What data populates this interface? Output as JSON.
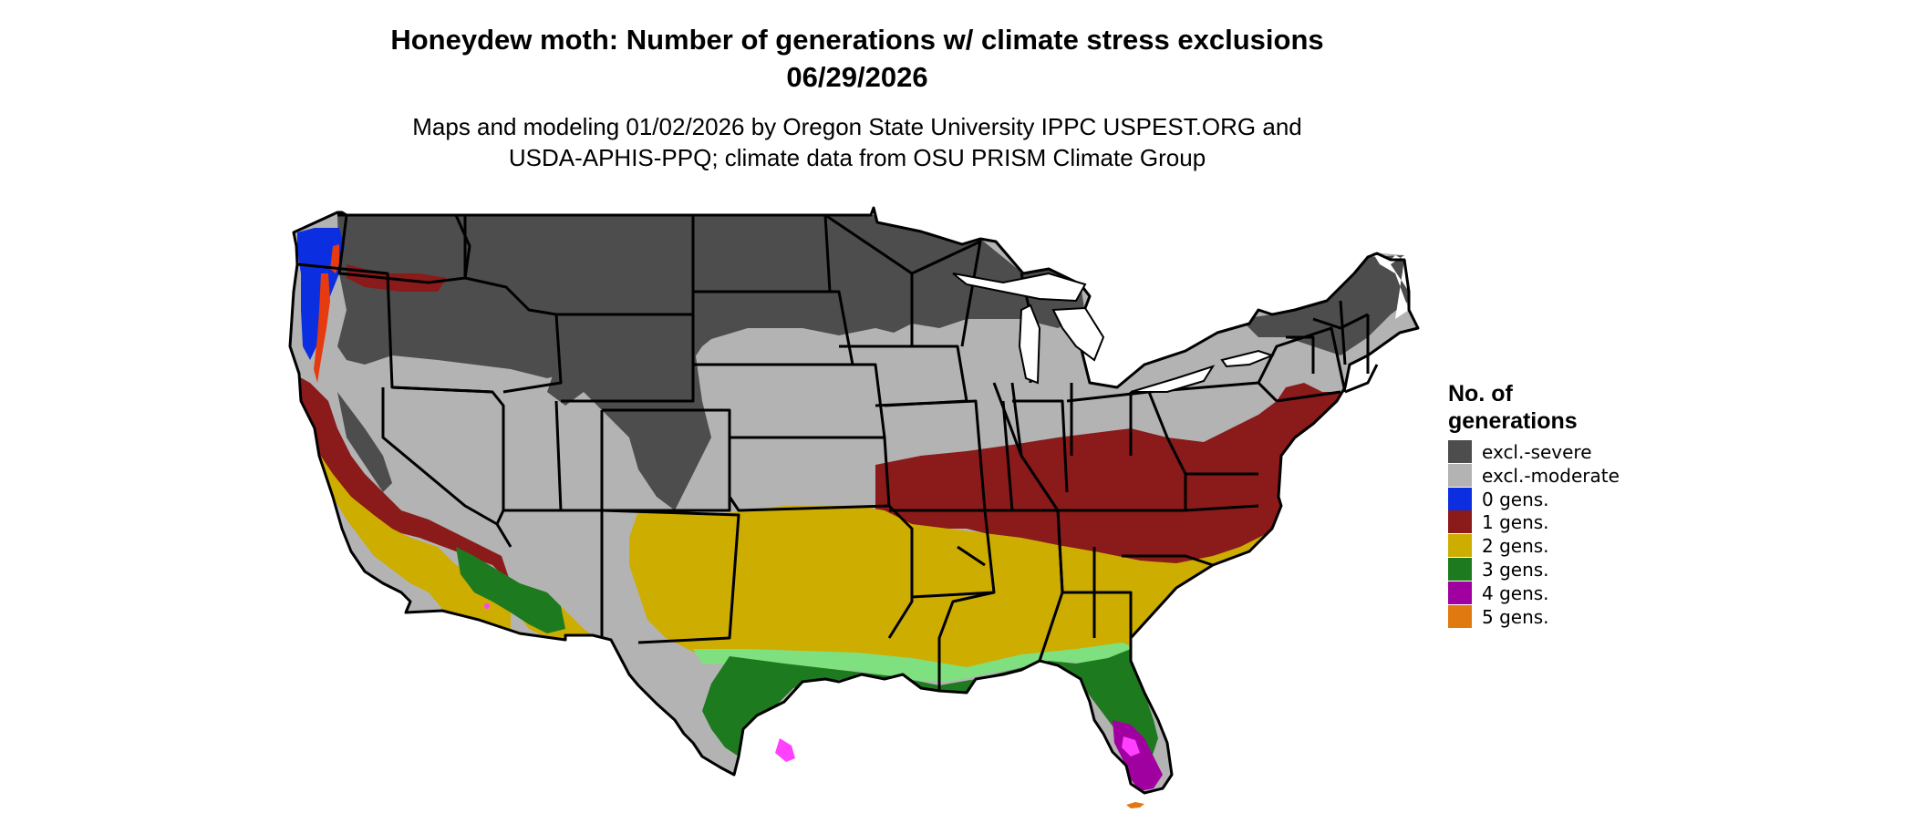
{
  "header": {
    "title_line1": "Honeydew moth: Number of generations w/ climate stress exclusions",
    "title_line2": "06/29/2026",
    "subtitle_line1": "Maps and modeling 01/02/2026 by Oregon State University IPPC USPEST.ORG and",
    "subtitle_line2": "USDA-APHIS-PPQ; climate data from OSU PRISM Climate Group"
  },
  "legend": {
    "title_line1": "No. of",
    "title_line2": "generations",
    "items": [
      {
        "label": "excl.-severe",
        "color": "#4d4d4d"
      },
      {
        "label": "excl.-moderate",
        "color": "#b3b3b3"
      },
      {
        "label": "0 gens.",
        "color": "#0b2fe0"
      },
      {
        "label": "1 gens.",
        "color": "#8b1a1a"
      },
      {
        "label": "2 gens.",
        "color": "#cdad00"
      },
      {
        "label": "3 gens.",
        "color": "#1e7a1e"
      },
      {
        "label": "4 gens.",
        "color": "#a000a0"
      },
      {
        "label": "5 gens.",
        "color": "#e07a10"
      }
    ]
  },
  "map_colors": {
    "light_green": "#7fe07f",
    "bright_yellow": "#f5f000",
    "magenta": "#ff40ff",
    "red_orange": "#e63a10",
    "water": "#ffffff",
    "border": "#000000"
  }
}
